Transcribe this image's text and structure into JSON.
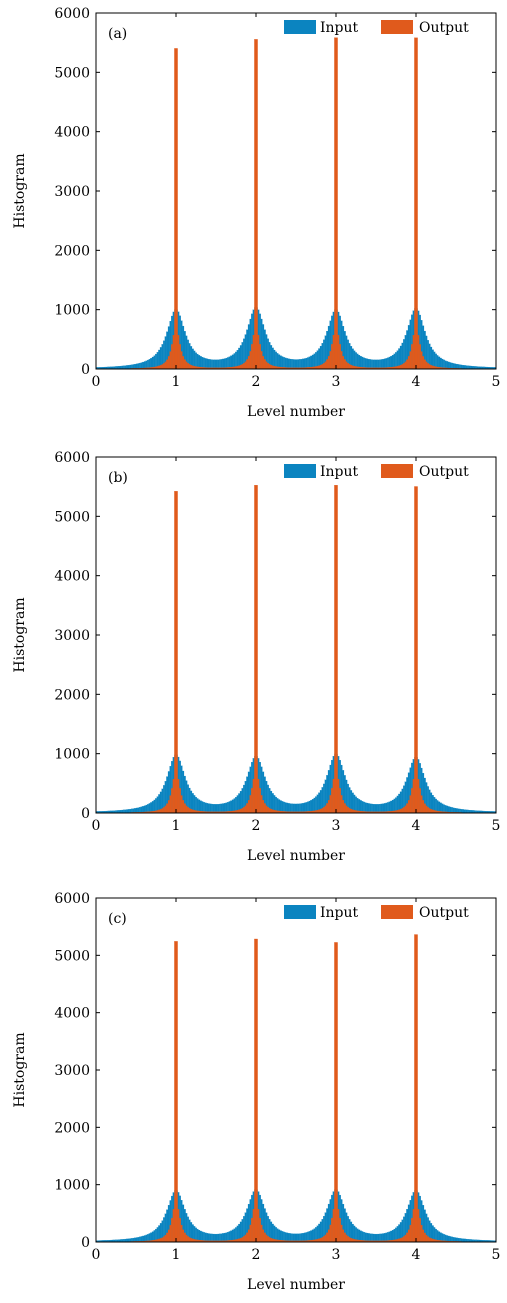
{
  "chart_data": [
    {
      "type": "bar",
      "panel_label": "(a)",
      "xlabel": "Level number",
      "ylabel": "Histogram",
      "xlim": [
        0,
        5
      ],
      "ylim": [
        0,
        6000
      ],
      "xticks": [
        "0",
        "1",
        "2",
        "3",
        "4",
        "5"
      ],
      "yticks": [
        "0",
        "1000",
        "2000",
        "3000",
        "4000",
        "5000",
        "6000"
      ],
      "legend_position": "top-right",
      "series": [
        {
          "name": "Input",
          "color": "#0b84c0",
          "peak_centers": [
            1,
            2,
            3,
            4
          ],
          "peak_heights": [
            980,
            1000,
            960,
            1000
          ],
          "width": 0.14
        },
        {
          "name": "Output",
          "color": "#e05a1c",
          "peak_centers": [
            1,
            2,
            3,
            4
          ],
          "peak_heights": [
            5400,
            5550,
            5580,
            5580
          ],
          "width": 0.1
        }
      ]
    },
    {
      "type": "bar",
      "panel_label": "(b)",
      "xlabel": "Level number",
      "ylabel": "Histogram",
      "xlim": [
        0,
        5
      ],
      "ylim": [
        0,
        6000
      ],
      "xticks": [
        "0",
        "1",
        "2",
        "3",
        "4",
        "5"
      ],
      "yticks": [
        "0",
        "1000",
        "2000",
        "3000",
        "4000",
        "5000",
        "6000"
      ],
      "legend_position": "top-right",
      "series": [
        {
          "name": "Input",
          "color": "#0b84c0",
          "peak_centers": [
            1,
            2,
            3,
            4
          ],
          "peak_heights": [
            960,
            920,
            960,
            920
          ],
          "width": 0.14
        },
        {
          "name": "Output",
          "color": "#e05a1c",
          "peak_centers": [
            1,
            2,
            3,
            4
          ],
          "peak_heights": [
            5420,
            5520,
            5520,
            5500
          ],
          "width": 0.1
        }
      ]
    },
    {
      "type": "bar",
      "panel_label": "(c)",
      "xlabel": "Level number",
      "ylabel": "Histogram",
      "xlim": [
        0,
        5
      ],
      "ylim": [
        0,
        6000
      ],
      "xticks": [
        "0",
        "1",
        "2",
        "3",
        "4",
        "5"
      ],
      "yticks": [
        "0",
        "1000",
        "2000",
        "3000",
        "4000",
        "5000",
        "6000"
      ],
      "legend_position": "top-right",
      "series": [
        {
          "name": "Input",
          "color": "#0b84c0",
          "peak_centers": [
            1,
            2,
            3,
            4
          ],
          "peak_heights": [
            880,
            880,
            880,
            880
          ],
          "width": 0.14
        },
        {
          "name": "Output",
          "color": "#e05a1c",
          "peak_centers": [
            1,
            2,
            3,
            4
          ],
          "peak_heights": [
            5240,
            5280,
            5220,
            5360
          ],
          "width": 0.1
        }
      ]
    }
  ]
}
